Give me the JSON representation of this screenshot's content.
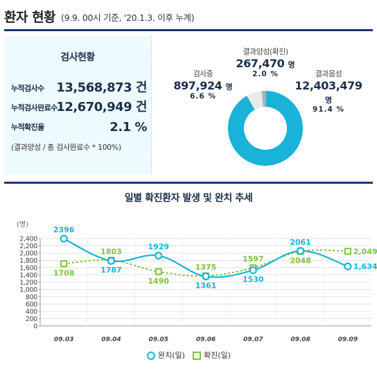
{
  "header": {
    "title": "환자 현황",
    "subtitle": "(9.9. 00시 기준, '20.1.3. 이후 누계)"
  },
  "testing_status": {
    "title": "검사현황",
    "rows": [
      {
        "label": "누적검사수",
        "value": "13,568,873 건"
      },
      {
        "label": "누적검사완료수",
        "value": "12,670,949 건"
      },
      {
        "label": "누적확진율",
        "value": "2.1 %"
      }
    ],
    "note": "(결과양성 / 총 검사완료수 * 100%)"
  },
  "donut": {
    "slices": [
      {
        "name": "검사중",
        "value": "897,924",
        "unit": "명",
        "percent": "6.6 %",
        "fraction": 0.066,
        "color": "#e8eaec"
      },
      {
        "name": "결과양성(확진)",
        "value": "267,470",
        "unit": "명",
        "percent": "2.0 %",
        "fraction": 0.02,
        "color": "#aab0b6"
      },
      {
        "name": "결과음성",
        "value": "12,403,479",
        "unit": "명",
        "percent": "91.4 %",
        "fraction": 0.914,
        "color": "#19b2d8"
      }
    ]
  },
  "chart_title": "일별 확진환자 발생 및 완치 추세",
  "chart_data": {
    "type": "line",
    "title": "일별 확진환자 발생 및 완치 추세",
    "ylabel": "(명)",
    "ylim": [
      0,
      2400
    ],
    "yticks": [
      "0",
      "200",
      "400",
      "600",
      "800",
      "1,000",
      "1,200",
      "1,400",
      "1,600",
      "1,800",
      "2,000",
      "2,200",
      "2,400"
    ],
    "categories": [
      "09.03",
      "09.04",
      "09.05",
      "09.06",
      "09.07",
      "09.08",
      "09.09"
    ],
    "series": [
      {
        "name": "완치(일)",
        "color": "#19b2d8",
        "values": [
          2396,
          1787,
          1929,
          1361,
          1530,
          2061,
          1634
        ],
        "labels": [
          "2396",
          "1787",
          "1929",
          "1361",
          "1530",
          "2061",
          "1,634"
        ]
      },
      {
        "name": "확진(일)",
        "color": "#7dc242",
        "values": [
          1708,
          1803,
          1490,
          1375,
          1597,
          2048,
          2049
        ],
        "labels": [
          "1708",
          "1803",
          "1490",
          "1375",
          "1597",
          "2048",
          "2,049"
        ]
      }
    ],
    "grid": true,
    "legend": "bottom-center"
  }
}
